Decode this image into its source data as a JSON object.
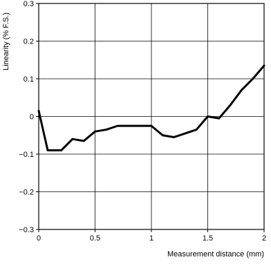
{
  "chart_data": {
    "type": "line",
    "title": "",
    "xlabel": "Measurement distance (mm)",
    "ylabel": "Linearity (% F.S.)",
    "xlim": [
      0,
      2
    ],
    "ylim": [
      -0.3,
      0.3
    ],
    "xticks": [
      {
        "value": 0,
        "label": "0"
      },
      {
        "value": 0.5,
        "label": "0.5"
      },
      {
        "value": 1,
        "label": "1"
      },
      {
        "value": 1.5,
        "label": "1.5"
      },
      {
        "value": 2,
        "label": "2"
      }
    ],
    "yticks": [
      {
        "value": 0.3,
        "label": "0.3"
      },
      {
        "value": 0.2,
        "label": "0.2"
      },
      {
        "value": 0.1,
        "label": "0.1"
      },
      {
        "value": 0,
        "label": "0"
      },
      {
        "value": -0.1,
        "label": "−0.1"
      },
      {
        "value": -0.2,
        "label": "−0.2"
      },
      {
        "value": -0.3,
        "label": "−0.3"
      }
    ],
    "grid": true,
    "line_color": "#000000",
    "series": [
      {
        "x": [
          0,
          0.08,
          0.2,
          0.3,
          0.4,
          0.5,
          0.6,
          0.7,
          0.8,
          0.9,
          1.0,
          1.1,
          1.2,
          1.3,
          1.4,
          1.5,
          1.6,
          1.7,
          1.8,
          1.9,
          2.0
        ],
        "values": [
          0.015,
          -0.09,
          -0.09,
          -0.06,
          -0.065,
          -0.04,
          -0.035,
          -0.025,
          -0.025,
          -0.025,
          -0.025,
          -0.05,
          -0.055,
          -0.045,
          -0.035,
          0.0,
          -0.005,
          0.03,
          0.07,
          0.1,
          0.135
        ]
      }
    ]
  }
}
